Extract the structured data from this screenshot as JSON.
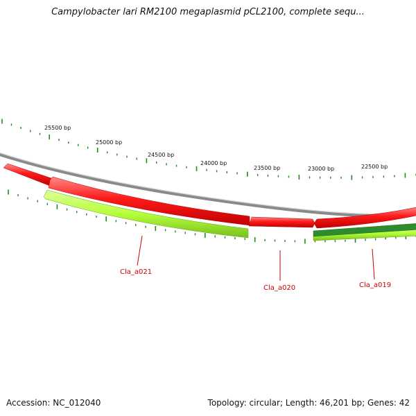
{
  "header": {
    "title": "Campylobacter lari RM2100 megaplasmid pCL2100, complete sequ..."
  },
  "footer": {
    "accession": "Accession: NC_012040",
    "summary": "Topology: circular; Length: 46,201 bp; Genes: 42"
  },
  "colors": {
    "backbone": "#8a8a8a",
    "forward_gene": "#ff1a1a",
    "reverse_gene": "#b6ff3a",
    "reverse_gene_dark": "#2e8b2e",
    "tick": "#1f8a1f",
    "gene_label": "#cc0000"
  },
  "tick_labels": [
    "25500 bp",
    "25000 bp",
    "24500 bp",
    "24000 bp",
    "23500 bp",
    "23000 bp",
    "22500 bp"
  ],
  "gene_labels": [
    "Cla_a021",
    "Cla_a020",
    "Cla_a019"
  ]
}
